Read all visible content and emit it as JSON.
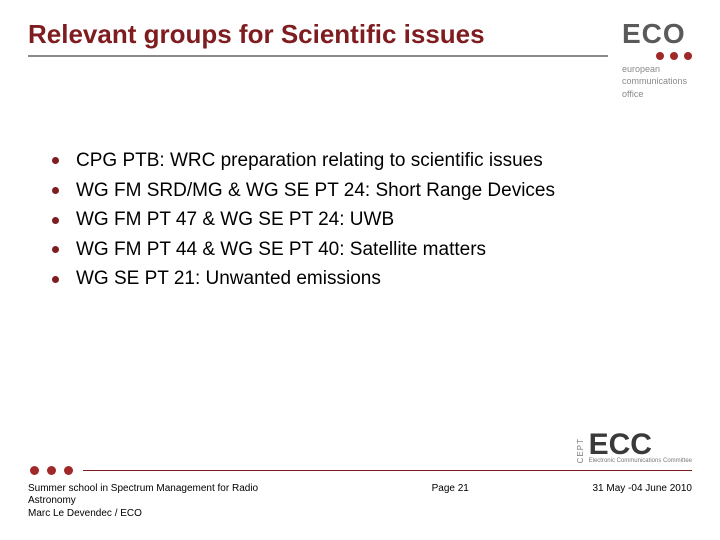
{
  "colors": {
    "title": "#7e1c1f",
    "title_underline": "#8a8a8a",
    "bullet": "#7e1c1f",
    "body_text": "#000000",
    "eco_logo": "#5a5a5a",
    "eco_sub": "#8a8a8a",
    "dot": "#a02828",
    "ecc_logo": "#3a3a3a",
    "hr": "#7e1c1f",
    "footer_text": "#000000"
  },
  "sizes": {
    "title_fontsize": 26,
    "body_fontsize": 19,
    "eco_logo_fontsize": 28,
    "eco_sub_fontsize": 9,
    "ecc_logo_fontsize": 30,
    "footer_fontsize": 10
  },
  "title": "Relevant groups for Scientific issues",
  "logo": {
    "text": "ECO",
    "subline1": "european",
    "subline2": "communications",
    "subline3": "office"
  },
  "bullets": [
    "CPG PTB: WRC preparation relating to scientific issues",
    "WG FM SRD/MG & WG SE PT 24: Short Range Devices",
    "WG FM PT 47 & WG SE PT 24: UWB",
    "WG FM PT 44 & WG SE PT 40: Satellite matters",
    "WG SE PT 21: Unwanted emissions"
  ],
  "ecc": {
    "cept": "CEPT",
    "text": "ECC",
    "sub": "Electronic Communications Committee"
  },
  "footer": {
    "left_line1": "Summer school in Spectrum Management for Radio Astronomy",
    "left_line2": "Marc Le Devendec / ECO",
    "center": "Page 21",
    "right": "31 May -04 June 2010"
  }
}
